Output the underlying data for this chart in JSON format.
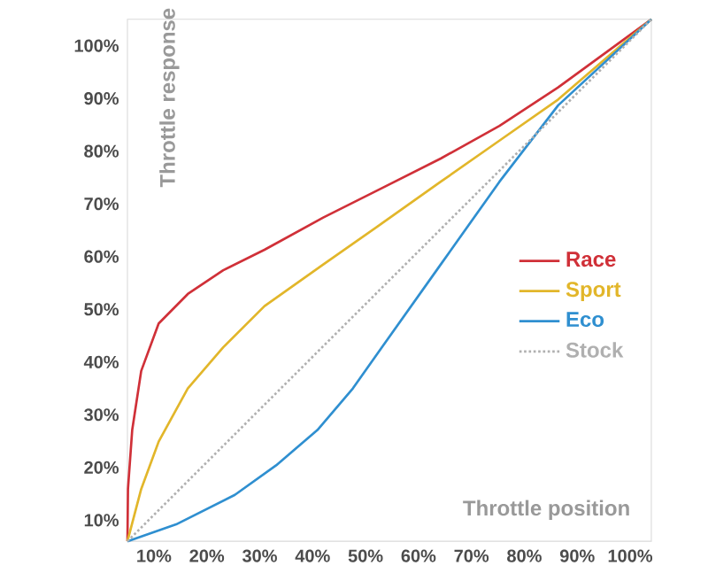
{
  "chart_data": {
    "type": "line",
    "xlabel": "Throttle position",
    "ylabel": "Throttle response",
    "xlim": [
      5,
      104
    ],
    "ylim": [
      6,
      105
    ],
    "xticks": [
      {
        "value": 10,
        "label": "10%"
      },
      {
        "value": 20,
        "label": "20%"
      },
      {
        "value": 30,
        "label": "30%"
      },
      {
        "value": 40,
        "label": "40%"
      },
      {
        "value": 50,
        "label": "50%"
      },
      {
        "value": 60,
        "label": "60%"
      },
      {
        "value": 70,
        "label": "70%"
      },
      {
        "value": 80,
        "label": "80%"
      },
      {
        "value": 90,
        "label": "90%"
      },
      {
        "value": 100,
        "label": "100%"
      }
    ],
    "yticks": [
      {
        "value": 10,
        "label": "10%"
      },
      {
        "value": 20,
        "label": "20%"
      },
      {
        "value": 30,
        "label": "30%"
      },
      {
        "value": 40,
        "label": "40%"
      },
      {
        "value": 50,
        "label": "50%"
      },
      {
        "value": 60,
        "label": "60%"
      },
      {
        "value": 70,
        "label": "70%"
      },
      {
        "value": 80,
        "label": "80%"
      },
      {
        "value": 90,
        "label": "90%"
      },
      {
        "value": 100,
        "label": "100%"
      }
    ],
    "legend": "right",
    "grid": false,
    "series": [
      {
        "name": "Race",
        "color": "#d03038",
        "x": [
          5,
          5.1,
          5.9,
          7.6,
          10.9,
          16.4,
          23.1,
          30.9,
          42,
          53.1,
          64.2,
          75.3,
          86.4,
          104
        ],
        "values": [
          6,
          15.9,
          27.1,
          38.3,
          47.3,
          52.9,
          57.4,
          61.3,
          67.4,
          73,
          78.6,
          84.8,
          92.1,
          105
        ]
      },
      {
        "name": "Sport",
        "color": "#e2b62a",
        "x": [
          5,
          7.6,
          10.9,
          16.4,
          23.1,
          30.9,
          42,
          53.1,
          64.2,
          75.3,
          86.4,
          104
        ],
        "values": [
          6,
          15.9,
          24.9,
          35,
          42.8,
          50.6,
          58.5,
          66.3,
          74.2,
          82,
          89.8,
          105
        ]
      },
      {
        "name": "Eco",
        "color": "#2f8fd0",
        "x": [
          5,
          14.2,
          25.3,
          33.1,
          40.9,
          47.6,
          53.1,
          64.2,
          75.3,
          86.4,
          104
        ],
        "values": [
          6,
          9.2,
          14.8,
          20.4,
          27.1,
          35,
          42.8,
          58.5,
          74.2,
          88.7,
          105
        ]
      },
      {
        "name": "Stock",
        "color": "#b0b0b0",
        "line_style": "dotted",
        "x": [
          5,
          104
        ],
        "values": [
          6,
          105
        ]
      }
    ]
  }
}
